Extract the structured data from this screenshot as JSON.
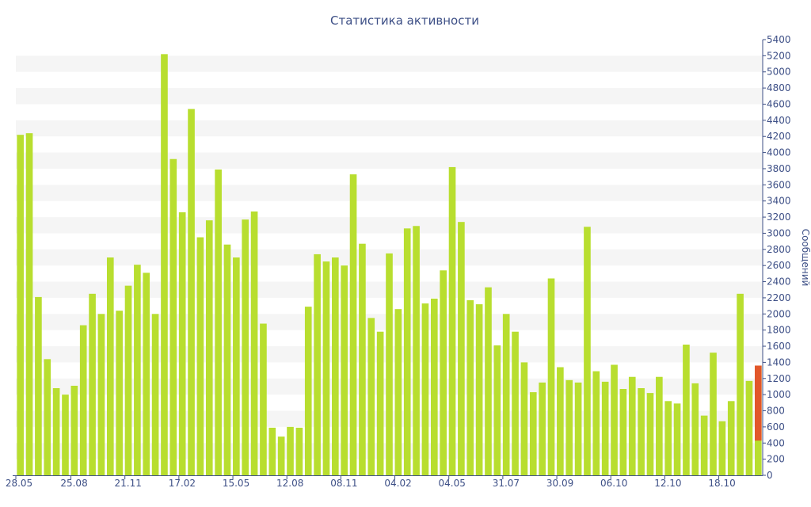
{
  "chart_data": {
    "type": "bar",
    "title": "Статистика активности",
    "ylabel": "Сообщений",
    "xlabel": "",
    "ylim": [
      0,
      5400
    ],
    "ytick_step": 200,
    "y_axis_side": "right",
    "grid": "horizontal alternating bands",
    "colors": {
      "bar": "#b8de2f",
      "highlight": "#e2572a",
      "band": "#f5f5f5",
      "axis": "#3d4f86",
      "title": "#3d4f86"
    },
    "x_tick_labels": [
      {
        "index": 0,
        "label": "28.05"
      },
      {
        "index": 6,
        "label": "25.08"
      },
      {
        "index": 12,
        "label": "21.11"
      },
      {
        "index": 18,
        "label": "17.02"
      },
      {
        "index": 24,
        "label": "15.05"
      },
      {
        "index": 30,
        "label": "12.08"
      },
      {
        "index": 36,
        "label": "08.11"
      },
      {
        "index": 42,
        "label": "04.02"
      },
      {
        "index": 48,
        "label": "04.05"
      },
      {
        "index": 54,
        "label": "31.07"
      },
      {
        "index": 60,
        "label": "30.09"
      },
      {
        "index": 66,
        "label": "06.10"
      },
      {
        "index": 72,
        "label": "12.10"
      },
      {
        "index": 78,
        "label": "18.10"
      }
    ],
    "values": [
      4220,
      4240,
      2210,
      1440,
      1080,
      1000,
      1110,
      1860,
      2250,
      2000,
      2700,
      2040,
      2350,
      2610,
      2510,
      2000,
      5220,
      3920,
      3260,
      4540,
      2950,
      3160,
      3790,
      2860,
      2700,
      3170,
      3270,
      1880,
      590,
      480,
      600,
      590,
      2090,
      2740,
      2650,
      2700,
      2600,
      3730,
      2870,
      1950,
      1780,
      2750,
      2060,
      3060,
      3090,
      2130,
      2190,
      2540,
      3820,
      3140,
      2170,
      2120,
      2330,
      1610,
      2000,
      1780,
      1400,
      1030,
      1150,
      2440,
      1340,
      1180,
      1150,
      3080,
      1290,
      1160,
      1370,
      1070,
      1220,
      1080,
      1020,
      1220,
      920,
      890,
      1620,
      1140,
      740,
      1520,
      670,
      920,
      2250,
      1170,
      1360
    ],
    "highlight": {
      "index": 82,
      "total": 1360,
      "lower": 430
    }
  }
}
